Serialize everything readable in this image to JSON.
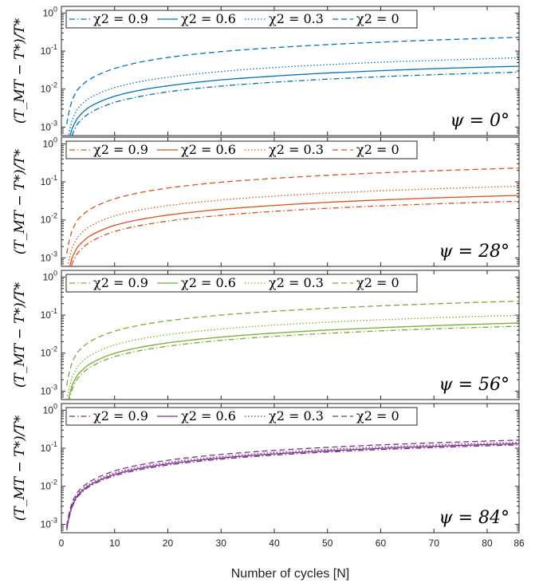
{
  "chart_data": {
    "type": "line",
    "xlabel": "Number of cycles [N]",
    "xlim": [
      0,
      86
    ],
    "xticks": [
      0,
      10,
      20,
      30,
      40,
      50,
      60,
      70,
      80,
      86
    ],
    "ylabel": "(T_MT − T*)/T*",
    "yscale": "log",
    "ylim": [
      0.0006,
      1.5
    ],
    "yticks": [
      0.001,
      0.01,
      0.1,
      1
    ],
    "ytick_base": "10",
    "ytick_exponents": [
      "-3",
      "-2",
      "-1",
      "0"
    ],
    "legend_position": "top-left",
    "x": [
      1,
      2,
      3,
      5,
      10,
      15,
      20,
      30,
      40,
      50,
      60,
      70,
      80,
      86
    ],
    "panels": [
      {
        "annotation": "ψ = 0°",
        "color": "#0072BD",
        "series": [
          {
            "name": "χ2 = 0.9",
            "linestyle": "dashdot",
            "values": [
              0.00015,
              0.0006,
              0.0012,
              0.0022,
              0.0045,
              0.0065,
              0.0085,
              0.012,
              0.0152,
              0.0183,
              0.0212,
              0.024,
              0.0265,
              0.028
            ]
          },
          {
            "name": "χ2 = 0.6",
            "linestyle": "solid",
            "values": [
              0.0002,
              0.0009,
              0.0017,
              0.0032,
              0.0065,
              0.0095,
              0.0122,
              0.0175,
              0.022,
              0.0265,
              0.0305,
              0.0345,
              0.038,
              0.04
            ]
          },
          {
            "name": "χ2 = 0.3",
            "linestyle": "dotted",
            "values": [
              0.0003,
              0.0015,
              0.003,
              0.0055,
              0.011,
              0.016,
              0.0205,
              0.029,
              0.037,
              0.044,
              0.051,
              0.057,
              0.063,
              0.067
            ]
          },
          {
            "name": "χ2 = 0",
            "linestyle": "dashed",
            "values": [
              0.0012,
              0.005,
              0.0095,
              0.017,
              0.035,
              0.052,
              0.068,
              0.097,
              0.123,
              0.148,
              0.172,
              0.195,
              0.217,
              0.23
            ]
          }
        ]
      },
      {
        "annotation": "ψ = 28°",
        "color": "#D95319",
        "series": [
          {
            "name": "χ2 = 0.9",
            "linestyle": "dashdot",
            "values": [
              0.00016,
              0.0007,
              0.0013,
              0.0024,
              0.005,
              0.0072,
              0.0093,
              0.0132,
              0.0168,
              0.0202,
              0.0234,
              0.0264,
              0.0292,
              0.031
            ]
          },
          {
            "name": "χ2 = 0.6",
            "linestyle": "solid",
            "values": [
              0.00022,
              0.001,
              0.0019,
              0.0035,
              0.0072,
              0.0104,
              0.0134,
              0.019,
              0.024,
              0.029,
              0.0335,
              0.0378,
              0.0418,
              0.044
            ]
          },
          {
            "name": "χ2 = 0.3",
            "linestyle": "dotted",
            "values": [
              0.0004,
              0.0018,
              0.0034,
              0.0063,
              0.0128,
              0.0185,
              0.0237,
              0.0334,
              0.0423,
              0.0505,
              0.0583,
              0.0657,
              0.0727,
              0.077
            ]
          },
          {
            "name": "χ2 = 0",
            "linestyle": "dashed",
            "values": [
              0.0013,
              0.0052,
              0.0098,
              0.0176,
              0.036,
              0.053,
              0.069,
              0.098,
              0.124,
              0.149,
              0.173,
              0.196,
              0.218,
              0.231
            ]
          }
        ]
      },
      {
        "annotation": "ψ = 56°",
        "color": "#77AC30",
        "series": [
          {
            "name": "χ2 = 0.9",
            "linestyle": "dashdot",
            "values": [
              0.00025,
              0.0011,
              0.0021,
              0.0039,
              0.0081,
              0.0118,
              0.0152,
              0.0216,
              0.0276,
              0.0331,
              0.0384,
              0.0434,
              0.0481,
              0.051
            ]
          },
          {
            "name": "χ2 = 0.6",
            "linestyle": "solid",
            "values": [
              0.0003,
              0.0014,
              0.0026,
              0.0048,
              0.0099,
              0.0144,
              0.0186,
              0.0264,
              0.0336,
              0.0403,
              0.0467,
              0.0527,
              0.0585,
              0.062
            ]
          },
          {
            "name": "χ2 = 0.3",
            "linestyle": "dotted",
            "values": [
              0.0005,
              0.0023,
              0.0043,
              0.008,
              0.0164,
              0.0238,
              0.0306,
              0.0431,
              0.0546,
              0.0652,
              0.0752,
              0.0847,
              0.0937,
              0.099
            ]
          },
          {
            "name": "χ2 = 0",
            "linestyle": "dashed",
            "values": [
              0.0014,
              0.0056,
              0.0104,
              0.0186,
              0.038,
              0.055,
              0.071,
              0.1,
              0.126,
              0.151,
              0.175,
              0.198,
              0.22,
              0.233
            ]
          }
        ]
      },
      {
        "annotation": "ψ = 84°",
        "color": "#7E2F8E",
        "series": [
          {
            "name": "χ2 = 0.9",
            "linestyle": "dashdot",
            "values": [
              0.0007,
              0.0028,
              0.0052,
              0.0093,
              0.019,
              0.0278,
              0.0362,
              0.0517,
              0.066,
              0.0795,
              0.0923,
              0.1045,
              0.1162,
              0.123
            ]
          },
          {
            "name": "χ2 = 0.6",
            "linestyle": "solid",
            "values": [
              0.00075,
              0.003,
              0.0056,
              0.01,
              0.0205,
              0.03,
              0.039,
              0.0556,
              0.071,
              0.0855,
              0.0993,
              0.1124,
              0.125,
              0.132
            ]
          },
          {
            "name": "χ2 = 0.3",
            "linestyle": "dotted",
            "values": [
              0.0008,
              0.0033,
              0.0061,
              0.0109,
              0.0224,
              0.0327,
              0.0424,
              0.0605,
              0.0772,
              0.0929,
              0.1078,
              0.122,
              0.1357,
              0.144
            ]
          },
          {
            "name": "χ2 = 0",
            "linestyle": "dashed",
            "values": [
              0.0009,
              0.0037,
              0.0069,
              0.0124,
              0.0255,
              0.0372,
              0.0483,
              0.0689,
              0.0879,
              0.1058,
              0.1228,
              0.139,
              0.1545,
              0.164
            ]
          }
        ]
      }
    ]
  }
}
